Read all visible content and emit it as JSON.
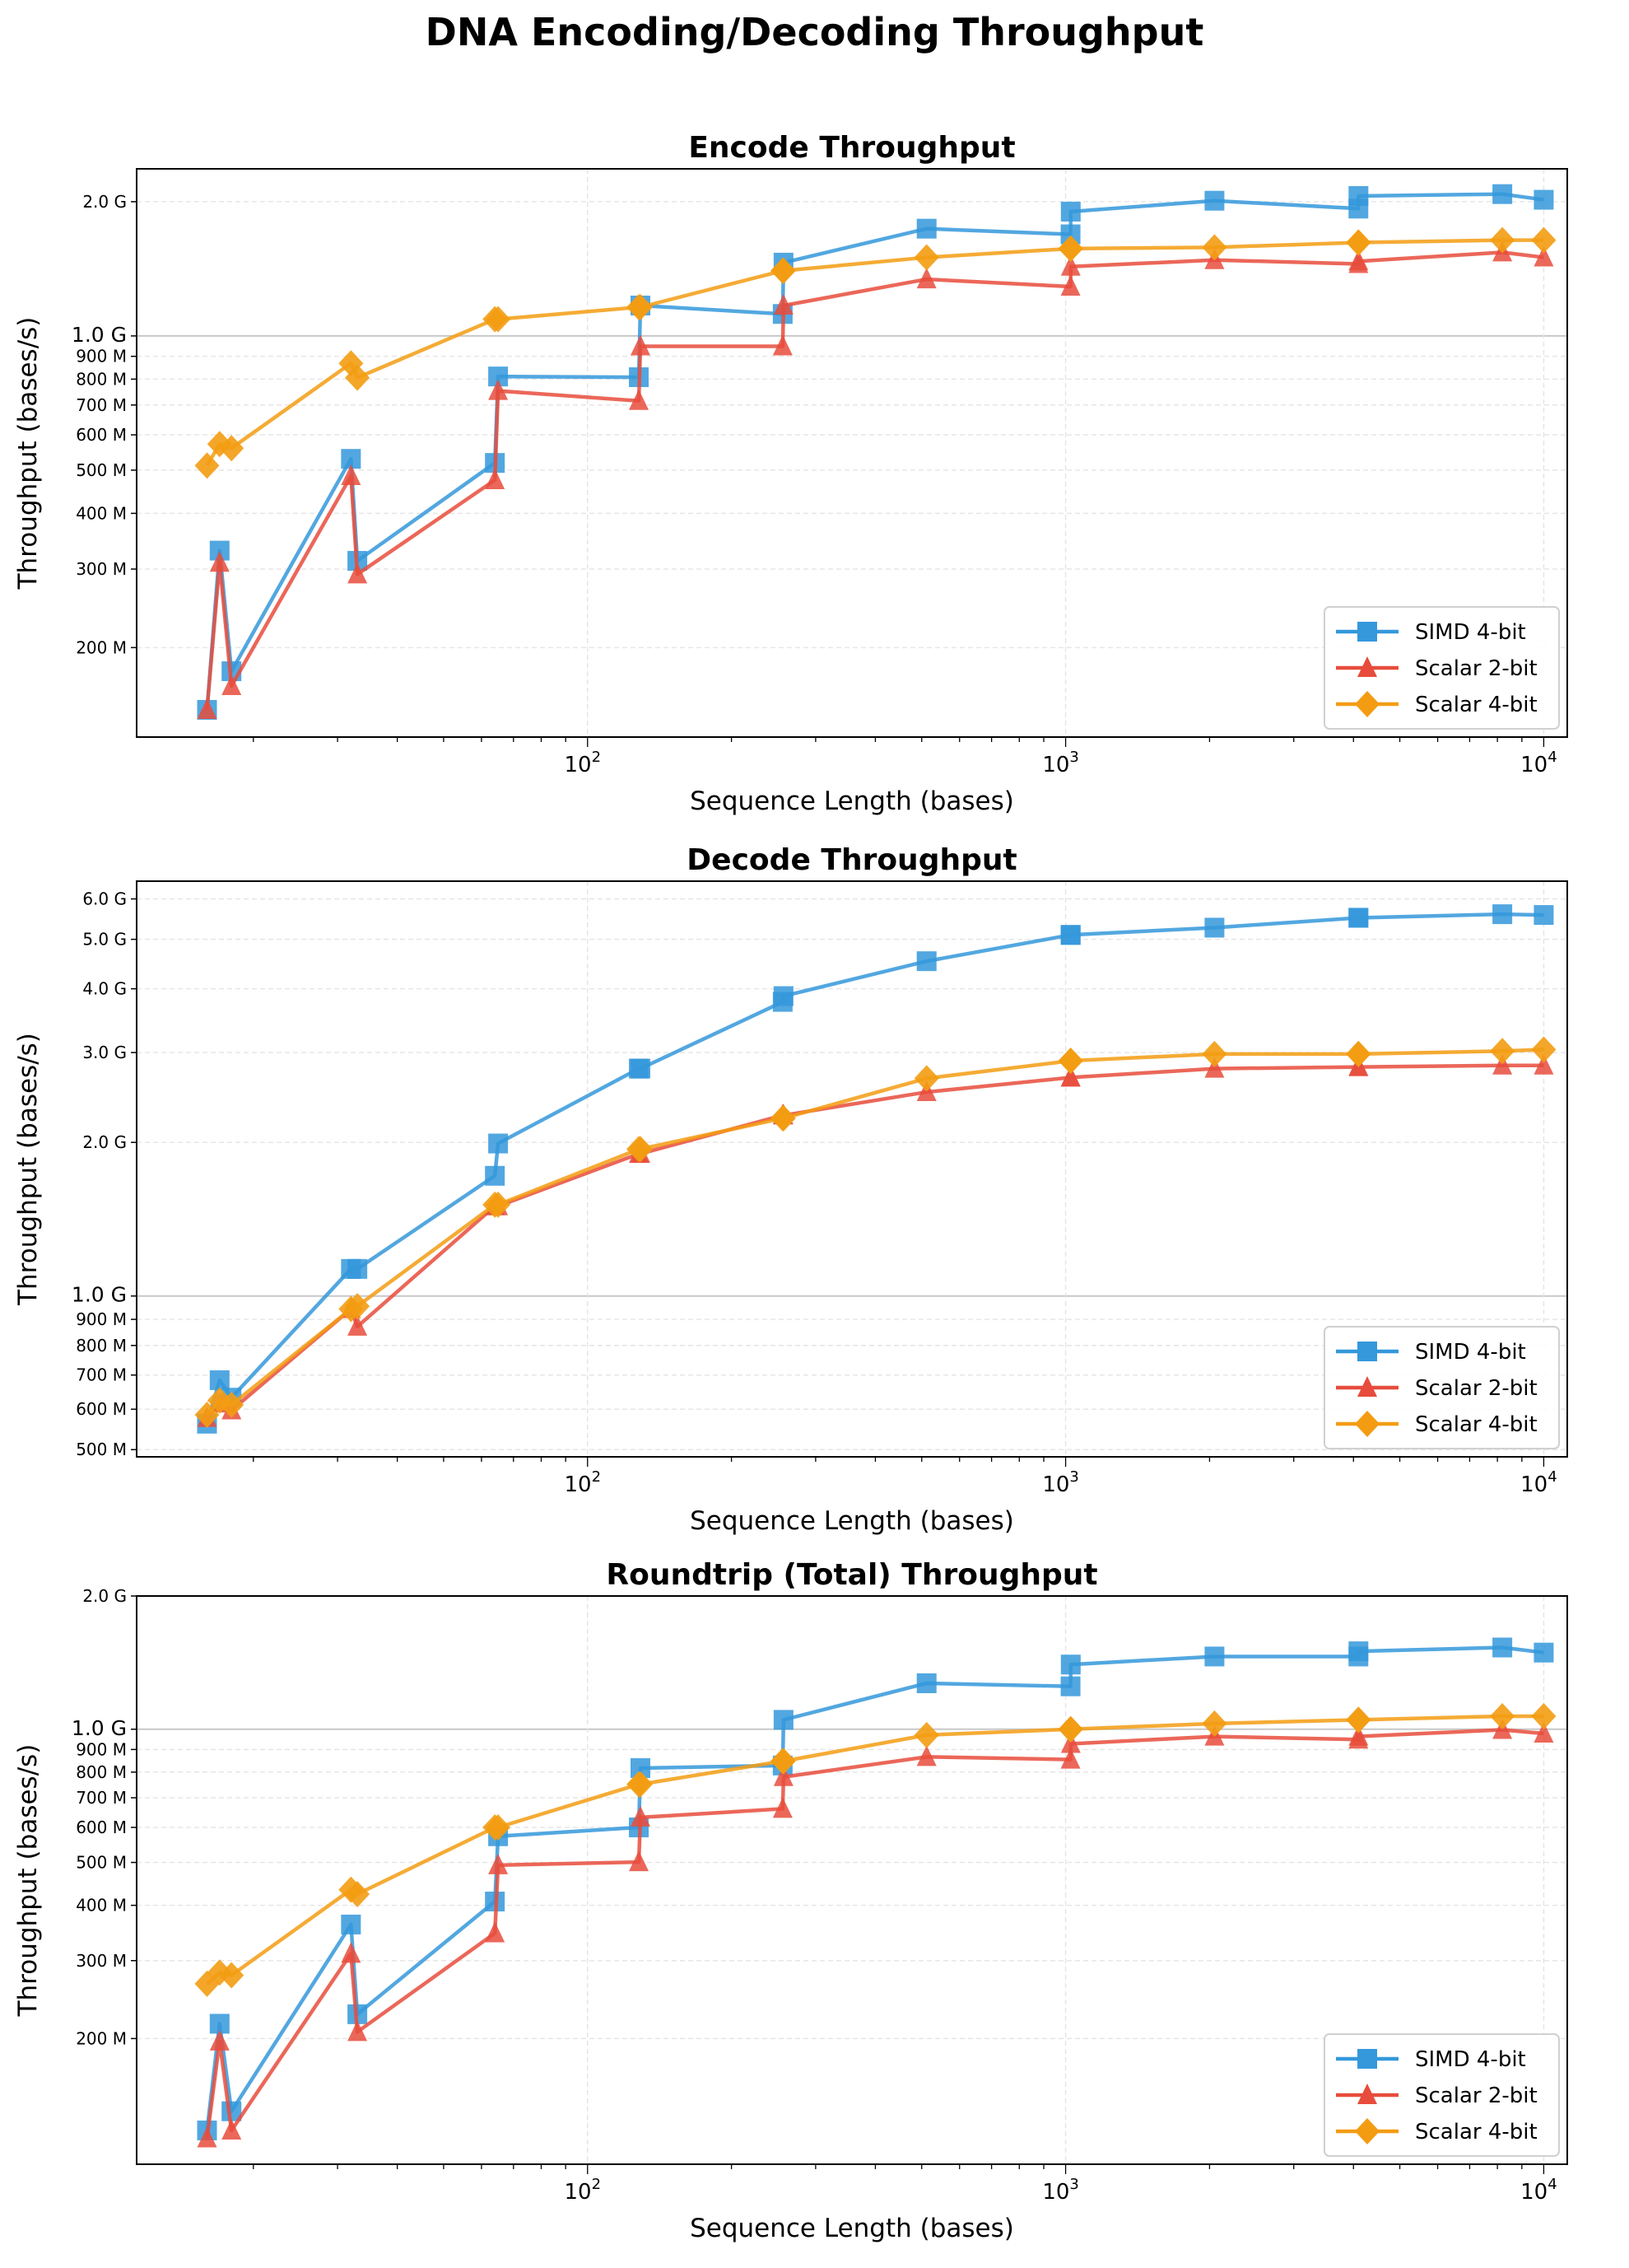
{
  "title": "DNA Encoding/Decoding Throughput",
  "colors": {
    "SIMD 4-bit": "#3498db",
    "Scalar 2-bit": "#e74c3c",
    "Scalar 4-bit": "#f39c12"
  },
  "chart_data": [
    {
      "type": "line",
      "title": "Encode Throughput",
      "xlabel": "Sequence Length (bases)",
      "ylabel": "Throughput (bases/s)",
      "xscale": "log",
      "yscale": "log",
      "xlim": [
        11.4,
        11200
      ],
      "ylim": [
        126000000.0,
        2370000000.0
      ],
      "xticks": [
        {
          "v": 100,
          "b": "10",
          "e": "2"
        },
        {
          "v": 1000,
          "b": "10",
          "e": "3"
        },
        {
          "v": 10000,
          "b": "10",
          "e": "4"
        }
      ],
      "yticks": [
        {
          "v": 200000000.0,
          "l": "200 M"
        },
        {
          "v": 300000000.0,
          "l": "300 M"
        },
        {
          "v": 400000000.0,
          "l": "400 M"
        },
        {
          "v": 500000000.0,
          "l": "500 M"
        },
        {
          "v": 600000000.0,
          "l": "600 M"
        },
        {
          "v": 700000000.0,
          "l": "700 M"
        },
        {
          "v": 800000000.0,
          "l": "800 M"
        },
        {
          "v": 900000000.0,
          "l": "900 M"
        },
        {
          "v": 1000000000.0,
          "l": "1.0 G"
        },
        {
          "v": 2000000000.0,
          "l": "2.0 G"
        }
      ],
      "grid": true,
      "legend": "lower-right",
      "x": [
        16,
        17,
        18,
        32,
        33,
        64,
        65,
        128,
        129,
        256,
        257,
        512,
        1024,
        1025,
        2048,
        4096,
        4097,
        8192,
        10000
      ],
      "series": [
        {
          "name": "SIMD 4-bit",
          "marker": "square",
          "values": [
            145000000.0,
            330000000.0,
            177000000.0,
            530000000.0,
            313000000.0,
            519000000.0,
            811000000.0,
            808000000.0,
            1170000000.0,
            1120000000.0,
            1460000000.0,
            1740000000.0,
            1690000000.0,
            1900000000.0,
            2010000000.0,
            1930000000.0,
            2060000000.0,
            2080000000.0,
            2020000000.0
          ]
        },
        {
          "name": "Scalar 2-bit",
          "marker": "triangle",
          "values": [
            145000000.0,
            310000000.0,
            164000000.0,
            485000000.0,
            292000000.0,
            475000000.0,
            753000000.0,
            715000000.0,
            948000000.0,
            948000000.0,
            1170000000.0,
            1340000000.0,
            1290000000.0,
            1430000000.0,
            1480000000.0,
            1450000000.0,
            1470000000.0,
            1540000000.0,
            1500000000.0
          ]
        },
        {
          "name": "Scalar 4-bit",
          "marker": "diamond",
          "values": [
            512000000.0,
            572000000.0,
            560000000.0,
            868000000.0,
            806000000.0,
            1090000000.0,
            1090000000.0,
            1160000000.0,
            1160000000.0,
            1400000000.0,
            1400000000.0,
            1500000000.0,
            1570000000.0,
            1570000000.0,
            1580000000.0,
            1620000000.0,
            1620000000.0,
            1640000000.0,
            1640000000.0
          ]
        }
      ]
    },
    {
      "type": "line",
      "title": "Decode Throughput",
      "xlabel": "Sequence Length (bases)",
      "ylabel": "Throughput (bases/s)",
      "xscale": "log",
      "yscale": "log",
      "xlim": [
        11.4,
        11200
      ],
      "ylim": [
        484000000.0,
        6500000000.0
      ],
      "xticks": [
        {
          "v": 100,
          "b": "10",
          "e": "2"
        },
        {
          "v": 1000,
          "b": "10",
          "e": "3"
        },
        {
          "v": 10000,
          "b": "10",
          "e": "4"
        }
      ],
      "yticks": [
        {
          "v": 500000000.0,
          "l": "500 M"
        },
        {
          "v": 600000000.0,
          "l": "600 M"
        },
        {
          "v": 700000000.0,
          "l": "700 M"
        },
        {
          "v": 800000000.0,
          "l": "800 M"
        },
        {
          "v": 900000000.0,
          "l": "900 M"
        },
        {
          "v": 1000000000.0,
          "l": "1.0 G"
        },
        {
          "v": 2000000000.0,
          "l": "2.0 G"
        },
        {
          "v": 3000000000.0,
          "l": "3.0 G"
        },
        {
          "v": 4000000000.0,
          "l": "4.0 G"
        },
        {
          "v": 5000000000.0,
          "l": "5.0 G"
        },
        {
          "v": 6000000000.0,
          "l": "6.0 G"
        }
      ],
      "grid": true,
      "legend": "lower-right",
      "x": [
        16,
        17,
        18,
        32,
        33,
        64,
        65,
        128,
        129,
        256,
        257,
        512,
        1024,
        1025,
        2048,
        4096,
        4097,
        8192,
        10000
      ],
      "series": [
        {
          "name": "SIMD 4-bit",
          "marker": "square",
          "values": [
            562000000.0,
            684000000.0,
            632000000.0,
            1130000000.0,
            1130000000.0,
            1720000000.0,
            1990000000.0,
            2790000000.0,
            2790000000.0,
            3770000000.0,
            3870000000.0,
            4530000000.0,
            5100000000.0,
            5100000000.0,
            5270000000.0,
            5510000000.0,
            5510000000.0,
            5600000000.0,
            5580000000.0
          ]
        },
        {
          "name": "Scalar 2-bit",
          "marker": "triangle",
          "values": [
            577000000.0,
            616000000.0,
            597000000.0,
            943000000.0,
            871000000.0,
            1500000000.0,
            1500000000.0,
            1900000000.0,
            1900000000.0,
            2260000000.0,
            2260000000.0,
            2510000000.0,
            2680000000.0,
            2680000000.0,
            2790000000.0,
            2810000000.0,
            2810000000.0,
            2830000000.0,
            2830000000.0
          ]
        },
        {
          "name": "Scalar 4-bit",
          "marker": "diamond",
          "values": [
            585000000.0,
            624000000.0,
            612000000.0,
            943000000.0,
            955000000.0,
            1510000000.0,
            1510000000.0,
            1940000000.0,
            1940000000.0,
            2230000000.0,
            2230000000.0,
            2670000000.0,
            2890000000.0,
            2890000000.0,
            2980000000.0,
            2980000000.0,
            2980000000.0,
            3020000000.0,
            3040000000.0
          ]
        }
      ]
    },
    {
      "type": "line",
      "title": "Roundtrip (Total) Throughput",
      "xlabel": "Sequence Length (bases)",
      "ylabel": "Throughput (bases/s)",
      "xscale": "log",
      "yscale": "log",
      "xlim": [
        11.4,
        11200
      ],
      "ylim": [
        104000000.0,
        2000000000.0
      ],
      "xticks": [
        {
          "v": 100,
          "b": "10",
          "e": "2"
        },
        {
          "v": 1000,
          "b": "10",
          "e": "3"
        },
        {
          "v": 10000,
          "b": "10",
          "e": "4"
        }
      ],
      "yticks": [
        {
          "v": 200000000.0,
          "l": "200 M"
        },
        {
          "v": 300000000.0,
          "l": "300 M"
        },
        {
          "v": 400000000.0,
          "l": "400 M"
        },
        {
          "v": 500000000.0,
          "l": "500 M"
        },
        {
          "v": 600000000.0,
          "l": "600 M"
        },
        {
          "v": 700000000.0,
          "l": "700 M"
        },
        {
          "v": 800000000.0,
          "l": "800 M"
        },
        {
          "v": 900000000.0,
          "l": "900 M"
        },
        {
          "v": 1000000000.0,
          "l": "1.0 G"
        },
        {
          "v": 2000000000.0,
          "l": "2.0 G"
        }
      ],
      "grid": true,
      "legend": "lower-right",
      "x": [
        16,
        17,
        18,
        32,
        33,
        64,
        65,
        128,
        129,
        256,
        257,
        512,
        1024,
        1025,
        2048,
        4096,
        4097,
        8192,
        10000
      ],
      "series": [
        {
          "name": "SIMD 4-bit",
          "marker": "square",
          "values": [
            124000000.0,
            216000000.0,
            137000000.0,
            362000000.0,
            227000000.0,
            408000000.0,
            573000000.0,
            600000000.0,
            817000000.0,
            828000000.0,
            1050000000.0,
            1270000000.0,
            1250000000.0,
            1400000000.0,
            1460000000.0,
            1460000000.0,
            1500000000.0,
            1530000000.0,
            1490000000.0
          ]
        },
        {
          "name": "Scalar 2-bit",
          "marker": "triangle",
          "values": [
            119000000.0,
            197000000.0,
            124000000.0,
            311000000.0,
            207000000.0,
            346000000.0,
            493000000.0,
            501000000.0,
            632000000.0,
            661000000.0,
            780000000.0,
            866000000.0,
            854000000.0,
            927000000.0,
            963000000.0,
            948000000.0,
            963000000.0,
            997000000.0,
            978000000.0
          ]
        },
        {
          "name": "Scalar 4-bit",
          "marker": "diamond",
          "values": [
            266000000.0,
            282000000.0,
            278000000.0,
            434000000.0,
            424000000.0,
            600000000.0,
            600000000.0,
            751000000.0,
            751000000.0,
            847000000.0,
            847000000.0,
            970000000.0,
            1000000000.0,
            1000000000.0,
            1030000000.0,
            1050000000.0,
            1050000000.0,
            1070000000.0,
            1070000000.0
          ]
        }
      ]
    }
  ]
}
